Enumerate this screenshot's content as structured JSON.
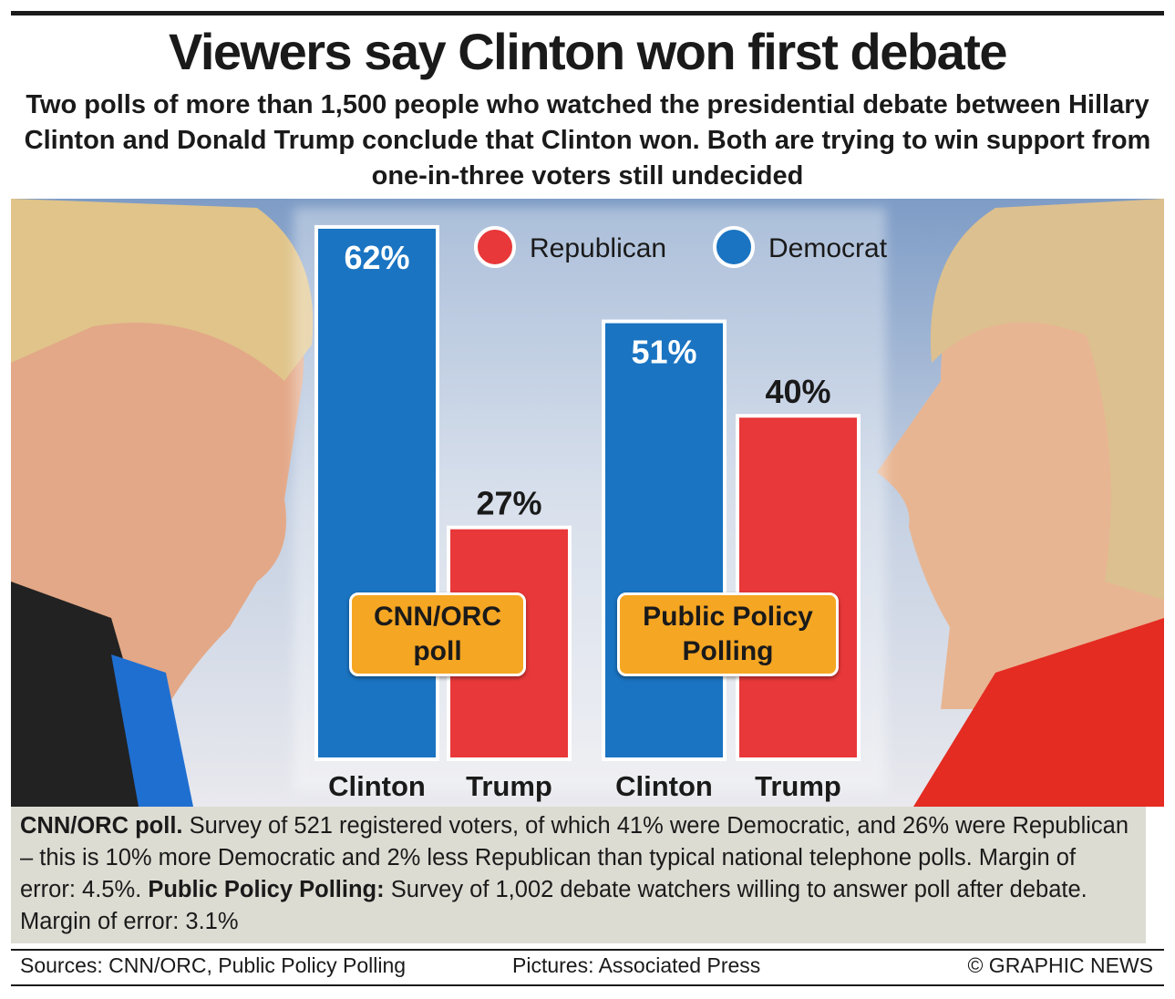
{
  "chart_data": {
    "type": "bar",
    "title": "Viewers say Clinton won first debate",
    "subtitle": "Two polls of more than 1,500 people who watched the presidential debate between Hillary Clinton and Donald Trump conclude that Clinton won. Both are trying to win support from one-in-three voters still undecided",
    "categories": [
      "Clinton",
      "Trump",
      "Clinton",
      "Trump"
    ],
    "groups": [
      "CNN/ORC poll",
      "Public Policy Polling"
    ],
    "series": [
      {
        "name": "Republican",
        "color": "#e8383a",
        "values": [
          null,
          27,
          null,
          40
        ],
        "value_labels": [
          null,
          "27%",
          null,
          "40%"
        ]
      },
      {
        "name": "Democrat",
        "color": "#1a74c2",
        "values": [
          62,
          null,
          51,
          null
        ],
        "value_labels": [
          "62%",
          null,
          "51%",
          null
        ]
      }
    ],
    "notes": [
      {
        "text": "CNN/ORC poll.",
        "bold": true
      },
      {
        "text": "Survey of 521 registered voters, of which 41% were Democratic, and 26% were Republican – this is 10% more Democratic and 2% less Republican than typical national telephone polls. Margin of error: 4.5%."
      },
      {
        "text": "Public Policy Polling:",
        "bold": true
      },
      {
        "text": "Survey of 1,002 debate watchers willing to answer poll after debate. Margin of error: 3.1%"
      }
    ],
    "sources": "Sources: CNN/ORC, Public Policy Polling",
    "pictures": "Pictures: Associated Press",
    "credit": "© GRAPHIC NEWS"
  }
}
